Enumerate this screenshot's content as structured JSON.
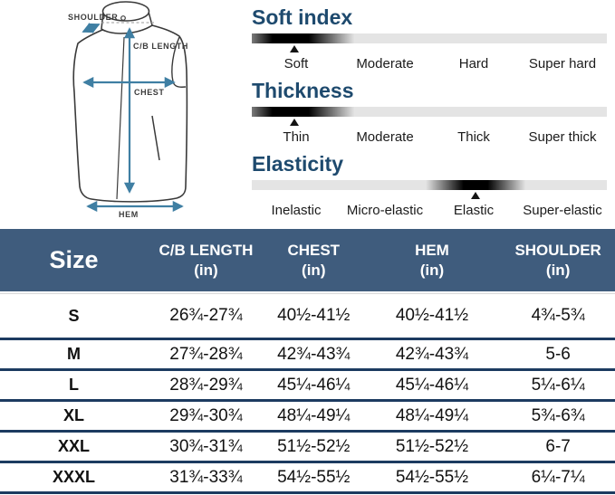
{
  "diagram": {
    "labels": {
      "shoulder": "SHOULDER",
      "cb_length": "C/B LENGTH",
      "chest": "CHEST",
      "hem": "HEM"
    },
    "arrow_color": "#3f7fa3"
  },
  "scales": [
    {
      "title": "Soft index",
      "labels": [
        "Soft",
        "Moderate",
        "Hard",
        "Super hard"
      ],
      "selected": "Soft",
      "marker_pct": 12
    },
    {
      "title": "Thickness",
      "labels": [
        "Thin",
        "Moderate",
        "Thick",
        "Super thick"
      ],
      "selected": "Thin",
      "marker_pct": 12
    },
    {
      "title": "Elasticity",
      "labels": [
        "Inelastic",
        "Micro-elastic",
        "Elastic",
        "Super-elastic"
      ],
      "selected": "Elastic",
      "marker_pct": 63
    }
  ],
  "size_table": {
    "header_bg": "#3f5c7d",
    "line_color": "#1c3b60",
    "columns": [
      {
        "label": "Size",
        "unit": ""
      },
      {
        "label": "C/B LENGTH",
        "unit": "(in)"
      },
      {
        "label": "CHEST",
        "unit": "(in)"
      },
      {
        "label": "HEM",
        "unit": "(in)"
      },
      {
        "label": "SHOULDER",
        "unit": "(in)"
      }
    ],
    "rows": [
      {
        "size": "S",
        "cb_length": "26¾-27¾",
        "chest": "40½-41½",
        "hem": "40½-41½",
        "shoulder": "4¾-5¾"
      },
      {
        "size": "M",
        "cb_length": "27¾-28¾",
        "chest": "42¾-43¾",
        "hem": "42¾-43¾",
        "shoulder": "5-6"
      },
      {
        "size": "L",
        "cb_length": "28¾-29¾",
        "chest": "45¼-46¼",
        "hem": "45¼-46¼",
        "shoulder": "5¼-6¼"
      },
      {
        "size": "XL",
        "cb_length": "29¾-30¾",
        "chest": "48¼-49¼",
        "hem": "48¼-49¼",
        "shoulder": "5¾-6¾"
      },
      {
        "size": "XXL",
        "cb_length": "30¾-31¾",
        "chest": "51½-52½",
        "hem": "51½-52½",
        "shoulder": "6-7"
      },
      {
        "size": "XXXL",
        "cb_length": "31¾-33¾",
        "chest": "54½-55½",
        "hem": "54½-55½",
        "shoulder": "6¼-7¼"
      }
    ]
  }
}
